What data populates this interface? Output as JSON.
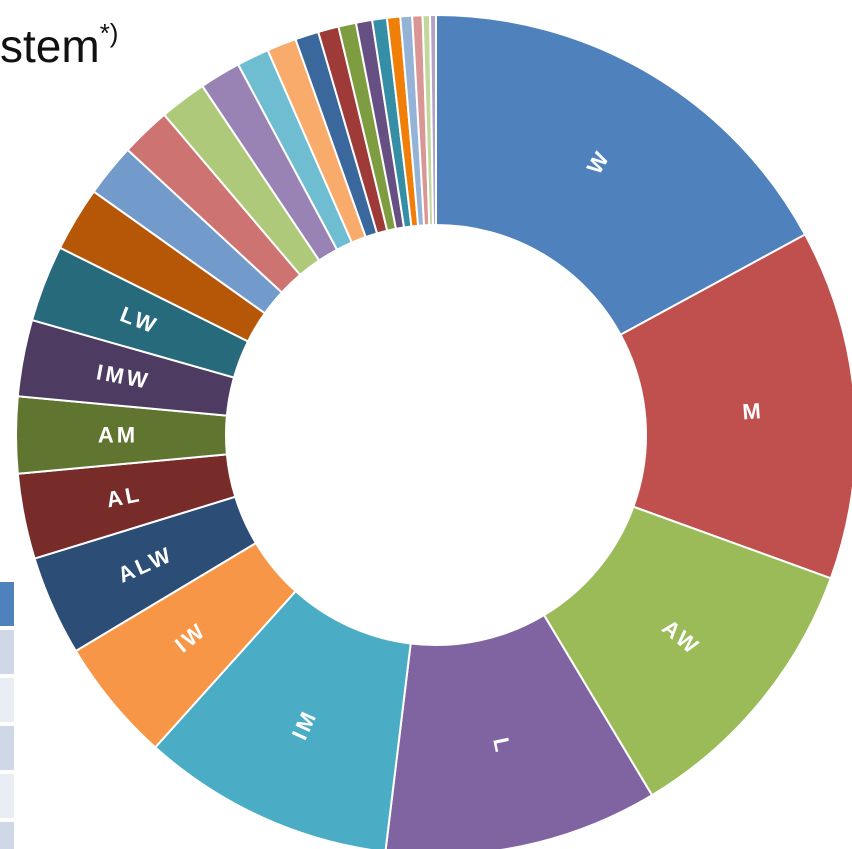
{
  "title_fragment": "stem",
  "title_superscript": "*)",
  "table_rows": [
    {
      "color": "#4f81bd"
    },
    {
      "color": "#d0d8e8"
    },
    {
      "color": "#e9edf4"
    },
    {
      "color": "#d0d8e8"
    },
    {
      "color": "#e9edf4"
    },
    {
      "color": "#d0d8e8"
    }
  ],
  "chart_data": {
    "type": "pie",
    "variant": "donut",
    "series": [
      {
        "label": "W",
        "value": 15.1,
        "color": "#4f81bd"
      },
      {
        "label": "M",
        "value": 11.9,
        "color": "#c0504d"
      },
      {
        "label": "AW",
        "value": 9.6,
        "color": "#9bbb59"
      },
      {
        "label": "L",
        "value": 9.3,
        "color": "#8064a2"
      },
      {
        "label": "IM",
        "value": 8.6,
        "color": "#4bacc6"
      },
      {
        "label": "IW",
        "value": 4.2,
        "color": "#f79646"
      },
      {
        "label": "ALW",
        "value": 3.4,
        "color": "#2c4d75"
      },
      {
        "label": "AL",
        "value": 2.9,
        "color": "#772c2a"
      },
      {
        "label": "AM",
        "value": 2.6,
        "color": "#5f7530"
      },
      {
        "label": "IMW",
        "value": 2.6,
        "color": "#4d3b62"
      },
      {
        "label": "LW",
        "value": 2.6,
        "color": "#276a7c"
      },
      {
        "label": "",
        "value": 2.2,
        "color": "#b65708"
      },
      {
        "label": "",
        "value": 1.8,
        "color": "#729aca"
      },
      {
        "label": "",
        "value": 1.7,
        "color": "#cd7371"
      },
      {
        "label": "",
        "value": 1.6,
        "color": "#afc97a"
      },
      {
        "label": "",
        "value": 1.4,
        "color": "#9983b5"
      },
      {
        "label": "",
        "value": 1.1,
        "color": "#6fbdd1"
      },
      {
        "label": "",
        "value": 1.0,
        "color": "#f9ab6b"
      },
      {
        "label": "",
        "value": 0.8,
        "color": "#3a679c"
      },
      {
        "label": "",
        "value": 0.7,
        "color": "#9e3b38"
      },
      {
        "label": "",
        "value": 0.6,
        "color": "#7e9c40"
      },
      {
        "label": "",
        "value": 0.55,
        "color": "#664f83"
      },
      {
        "label": "",
        "value": 0.5,
        "color": "#358ea6"
      },
      {
        "label": "",
        "value": 0.45,
        "color": "#f07f09"
      },
      {
        "label": "",
        "value": 0.4,
        "color": "#95b3d7"
      },
      {
        "label": "",
        "value": 0.35,
        "color": "#d99694"
      },
      {
        "label": "",
        "value": 0.25,
        "color": "#c3d69b"
      },
      {
        "label": "",
        "value": 0.2,
        "color": "#b3a2c7"
      }
    ]
  }
}
